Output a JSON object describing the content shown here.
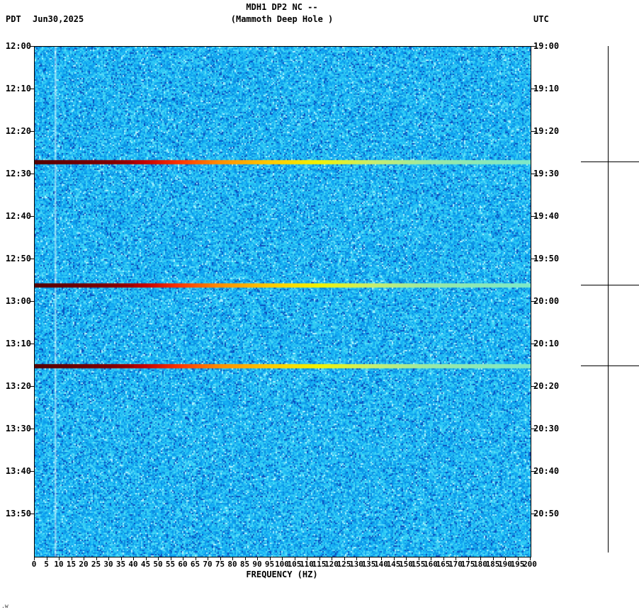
{
  "header": {
    "title_line1": "MDH1 DP2 NC --",
    "title_line2": "(Mammoth Deep Hole )",
    "timezone_left": "PDT",
    "date": "Jun30,2025",
    "timezone_right": "UTC"
  },
  "axes": {
    "left_time_ticks": [
      "12:00",
      "12:10",
      "12:20",
      "12:30",
      "12:40",
      "12:50",
      "13:00",
      "13:10",
      "13:20",
      "13:30",
      "13:40",
      "13:50"
    ],
    "right_time_ticks": [
      "19:00",
      "19:10",
      "19:20",
      "19:30",
      "19:40",
      "19:50",
      "20:00",
      "20:10",
      "20:20",
      "20:30",
      "20:40",
      "20:50"
    ],
    "freq_tick_labels": [
      "0",
      "5",
      "10",
      "15",
      "20",
      "25",
      "30",
      "35",
      "40",
      "45",
      "50",
      "55",
      "60",
      "65",
      "70",
      "75",
      "80",
      "85",
      "90",
      "95",
      "100",
      "105",
      "110",
      "115",
      "120",
      "125",
      "130",
      "135",
      "140",
      "145",
      "150",
      "155",
      "160",
      "165",
      "170",
      "175",
      "180",
      "185",
      "190",
      "195",
      "200"
    ],
    "xlabel": "FREQUENCY (HZ)"
  },
  "footer_mark": ".w",
  "chart_data": {
    "type": "heatmap",
    "subtype": "seismic-spectrogram",
    "title": "MDH1 DP2 NC -- (Mammoth Deep Hole )",
    "station": "MDH1 DP2 NC",
    "location": "Mammoth Deep Hole",
    "date": "Jun30,2025",
    "x_axis": {
      "label": "FREQUENCY (HZ)",
      "min": 0,
      "max": 200,
      "tick_step": 5
    },
    "y_axis_left": {
      "label": "PDT",
      "start": "12:00",
      "end": "14:00",
      "tick_step_minutes": 10
    },
    "y_axis_right": {
      "label": "UTC",
      "start": "19:00",
      "end": "21:00",
      "tick_step_minutes": 10
    },
    "background_noise": {
      "description": "broadband blue-cyan speckled noise across 0-200 Hz for the full 2-hour window",
      "base_colors": [
        "#0a4ec0",
        "#1585e0",
        "#2fb4ee",
        "#b0f4ff"
      ]
    },
    "calibration_streak_hz": 8,
    "events": [
      {
        "time_pdt": "12:27",
        "time_utc": "19:27",
        "minutes_from_start": 27.2,
        "description": "broadband high-amplitude event, strongest below 35 Hz, energy to 200 Hz"
      },
      {
        "time_pdt": "12:56",
        "time_utc": "19:56",
        "minutes_from_start": 56.2,
        "description": "broadband high-amplitude event, strongest below 35 Hz, energy to 200 Hz"
      },
      {
        "time_pdt": "13:15",
        "time_utc": "20:15",
        "minutes_from_start": 75.2,
        "description": "broadband high-amplitude event, strongest below 35 Hz, energy to 200 Hz"
      }
    ],
    "event_gradient": [
      {
        "pos": 0.0,
        "color": "#550000"
      },
      {
        "pos": 0.16,
        "color": "#8b0000"
      },
      {
        "pos": 0.22,
        "color": "#c40000"
      },
      {
        "pos": 0.29,
        "color": "#ff3300"
      },
      {
        "pos": 0.37,
        "color": "#ff8c00"
      },
      {
        "pos": 0.47,
        "color": "#ffc800"
      },
      {
        "pos": 0.57,
        "color": "#f2f200"
      },
      {
        "pos": 0.68,
        "color": "#c9ee6e"
      },
      {
        "pos": 0.8,
        "color": "#9ae8a6"
      },
      {
        "pos": 1.0,
        "color": "#7de8c8"
      }
    ],
    "colormap": "blue(low) -> cyan -> green -> yellow -> orange -> red -> dark red(high)"
  }
}
